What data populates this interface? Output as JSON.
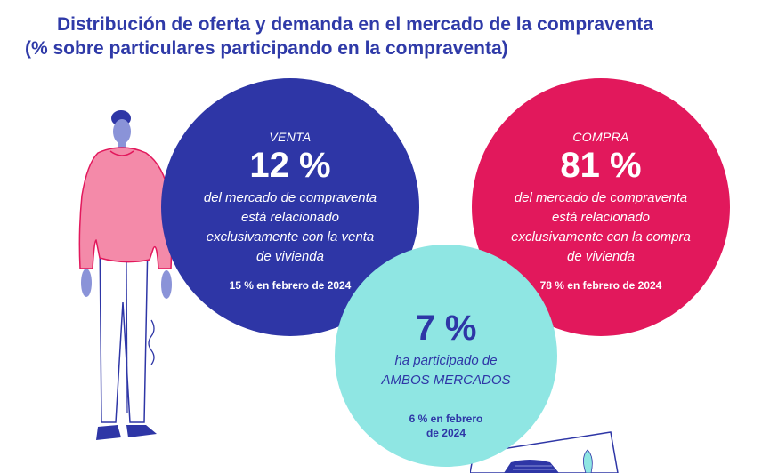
{
  "title": {
    "line1": "Distribución de oferta y demanda en el mercado de la compraventa",
    "line2": "(% sobre particulares participando en la compraventa)"
  },
  "bubbles": {
    "venta": {
      "label": "VENTA",
      "value": "12 %",
      "desc1": "del mercado de compraventa",
      "desc2": "está relacionado",
      "desc3": "exclusivamente con la venta",
      "desc4": "de vivienda",
      "prev": "15 % en febrero de 2024"
    },
    "compra": {
      "label": "COMPRA",
      "value": "81 %",
      "desc1": "del mercado de compraventa",
      "desc2": "está relacionado",
      "desc3": "exclusivamente con la compra",
      "desc4": "de vivienda",
      "prev": "78 % en febrero de 2024"
    },
    "ambos": {
      "value": "7 %",
      "desc1": "ha participado de",
      "desc2": "AMBOS MERCADOS",
      "prev1": "6 % en febrero",
      "prev2": "de 2024"
    }
  },
  "chart_data": {
    "type": "bubble",
    "title": "Distribución de oferta y demanda en el mercado de la compraventa",
    "subtitle": "(% sobre particulares participando en la compraventa)",
    "unit": "%",
    "series": [
      {
        "name": "VENTA",
        "value": 12,
        "previous": 15
      },
      {
        "name": "COMPRA",
        "value": 81,
        "previous": 78
      },
      {
        "name": "AMBOS MERCADOS",
        "value": 7,
        "previous": 6
      }
    ]
  },
  "colors": {
    "title": "#2f3aa8",
    "venta": "#2e36a6",
    "compra": "#e2185c",
    "ambos": "#8fe6e3"
  }
}
